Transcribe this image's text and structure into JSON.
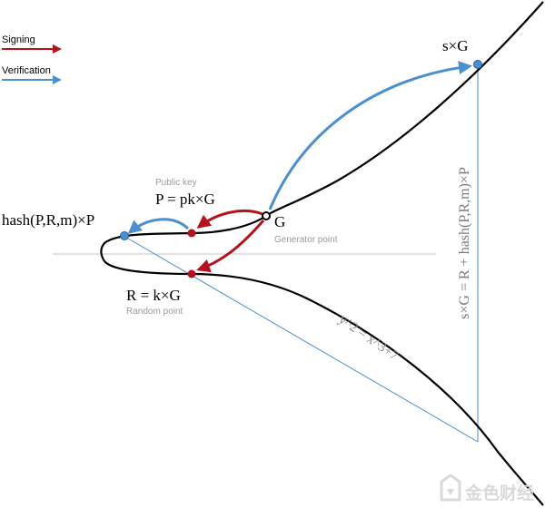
{
  "legend": {
    "signing_label": "Signing",
    "verification_label": "Verification"
  },
  "labels": {
    "sG": "s×G",
    "vertical_equation": "s×G = R + hash(P,R,m)×P",
    "public_key_caption": "Public key",
    "public_key_formula": "P = pk×G",
    "hash_point": "hash(P,R,m)×P",
    "generator_letter": "G",
    "generator_caption": "Generator point",
    "random_formula": "R = k×G",
    "random_caption": "Random point",
    "curve_equation": "y^2 = x^3+7"
  },
  "watermark": {
    "text": "金色财经"
  },
  "colors": {
    "signing": "#b5121b",
    "verification": "#4a8fd0",
    "curve": "#000000",
    "axis": "#c4c4c4",
    "caption": "#9a9a9a",
    "watermark": "#d9d9d9"
  }
}
